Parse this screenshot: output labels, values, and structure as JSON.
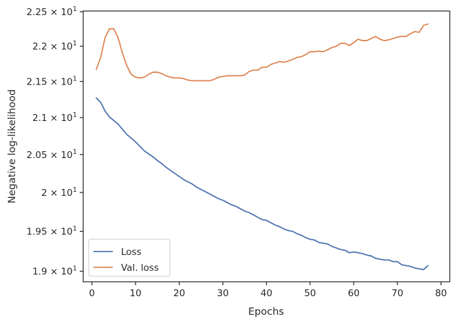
{
  "chart_data": {
    "type": "line",
    "xlabel": "Epochs",
    "ylabel": "Negative log-likelihood",
    "yscale": "log",
    "xlim": [
      -2,
      82
    ],
    "ylim": [
      18.87,
      22.51
    ],
    "xticks": [
      0,
      10,
      20,
      30,
      40,
      50,
      60,
      70,
      80
    ],
    "yticks": [
      {
        "value": 19.0,
        "mantissa": "1.9"
      },
      {
        "value": 19.5,
        "mantissa": "1.95"
      },
      {
        "value": 20.0,
        "mantissa": "2"
      },
      {
        "value": 20.5,
        "mantissa": "2.05"
      },
      {
        "value": 21.0,
        "mantissa": "2.1"
      },
      {
        "value": 21.5,
        "mantissa": "2.15"
      },
      {
        "value": 22.0,
        "mantissa": "2.2"
      },
      {
        "value": 22.5,
        "mantissa": "2.25"
      }
    ],
    "ytick_base": "10",
    "ytick_exp": "1",
    "grid": false,
    "legend_position": "lower-left",
    "x": [
      1,
      2,
      3,
      4,
      5,
      6,
      7,
      8,
      9,
      10,
      11,
      12,
      13,
      14,
      15,
      16,
      17,
      18,
      19,
      20,
      21,
      22,
      23,
      24,
      25,
      26,
      27,
      28,
      29,
      30,
      31,
      32,
      33,
      34,
      35,
      36,
      37,
      38,
      39,
      40,
      41,
      42,
      43,
      44,
      45,
      46,
      47,
      48,
      49,
      50,
      51,
      52,
      53,
      54,
      55,
      56,
      57,
      58,
      59,
      60,
      61,
      62,
      63,
      64,
      65,
      66,
      67,
      68,
      69,
      70,
      71,
      72,
      73,
      74,
      75,
      76,
      77
    ],
    "series": [
      {
        "name": "Loss",
        "color": "#4c72b0",
        "values": [
          21.27,
          21.21,
          21.09,
          21.01,
          20.96,
          20.91,
          20.84,
          20.77,
          20.72,
          20.67,
          20.61,
          20.55,
          20.51,
          20.47,
          20.42,
          20.38,
          20.33,
          20.29,
          20.25,
          20.21,
          20.17,
          20.14,
          20.11,
          20.07,
          20.04,
          20.01,
          19.98,
          19.95,
          19.92,
          19.9,
          19.87,
          19.84,
          19.82,
          19.79,
          19.76,
          19.74,
          19.71,
          19.68,
          19.65,
          19.64,
          19.61,
          19.58,
          19.56,
          19.53,
          19.51,
          19.5,
          19.47,
          19.45,
          19.42,
          19.4,
          19.39,
          19.36,
          19.35,
          19.34,
          19.31,
          19.29,
          19.27,
          19.26,
          19.23,
          19.24,
          19.23,
          19.22,
          19.2,
          19.19,
          19.16,
          19.15,
          19.14,
          19.14,
          19.12,
          19.12,
          19.08,
          19.07,
          19.06,
          19.04,
          19.03,
          19.02,
          19.07
        ]
      },
      {
        "name": "Val. loss",
        "color": "#dd8452",
        "values": [
          21.67,
          21.84,
          22.12,
          22.25,
          22.25,
          22.12,
          21.9,
          21.72,
          21.6,
          21.56,
          21.55,
          21.56,
          21.6,
          21.63,
          21.63,
          21.61,
          21.58,
          21.56,
          21.55,
          21.55,
          21.54,
          21.52,
          21.51,
          21.51,
          21.51,
          21.51,
          21.51,
          21.53,
          21.56,
          21.57,
          21.58,
          21.58,
          21.58,
          21.58,
          21.59,
          21.64,
          21.66,
          21.66,
          21.7,
          21.7,
          21.74,
          21.76,
          21.78,
          21.77,
          21.79,
          21.81,
          21.84,
          21.85,
          21.88,
          21.92,
          21.92,
          21.93,
          21.92,
          21.95,
          21.98,
          22.0,
          22.04,
          22.04,
          22.01,
          22.05,
          22.1,
          22.08,
          22.08,
          22.11,
          22.14,
          22.1,
          22.08,
          22.09,
          22.11,
          22.13,
          22.14,
          22.14,
          22.18,
          22.21,
          22.2,
          22.3,
          22.32
        ]
      }
    ]
  }
}
